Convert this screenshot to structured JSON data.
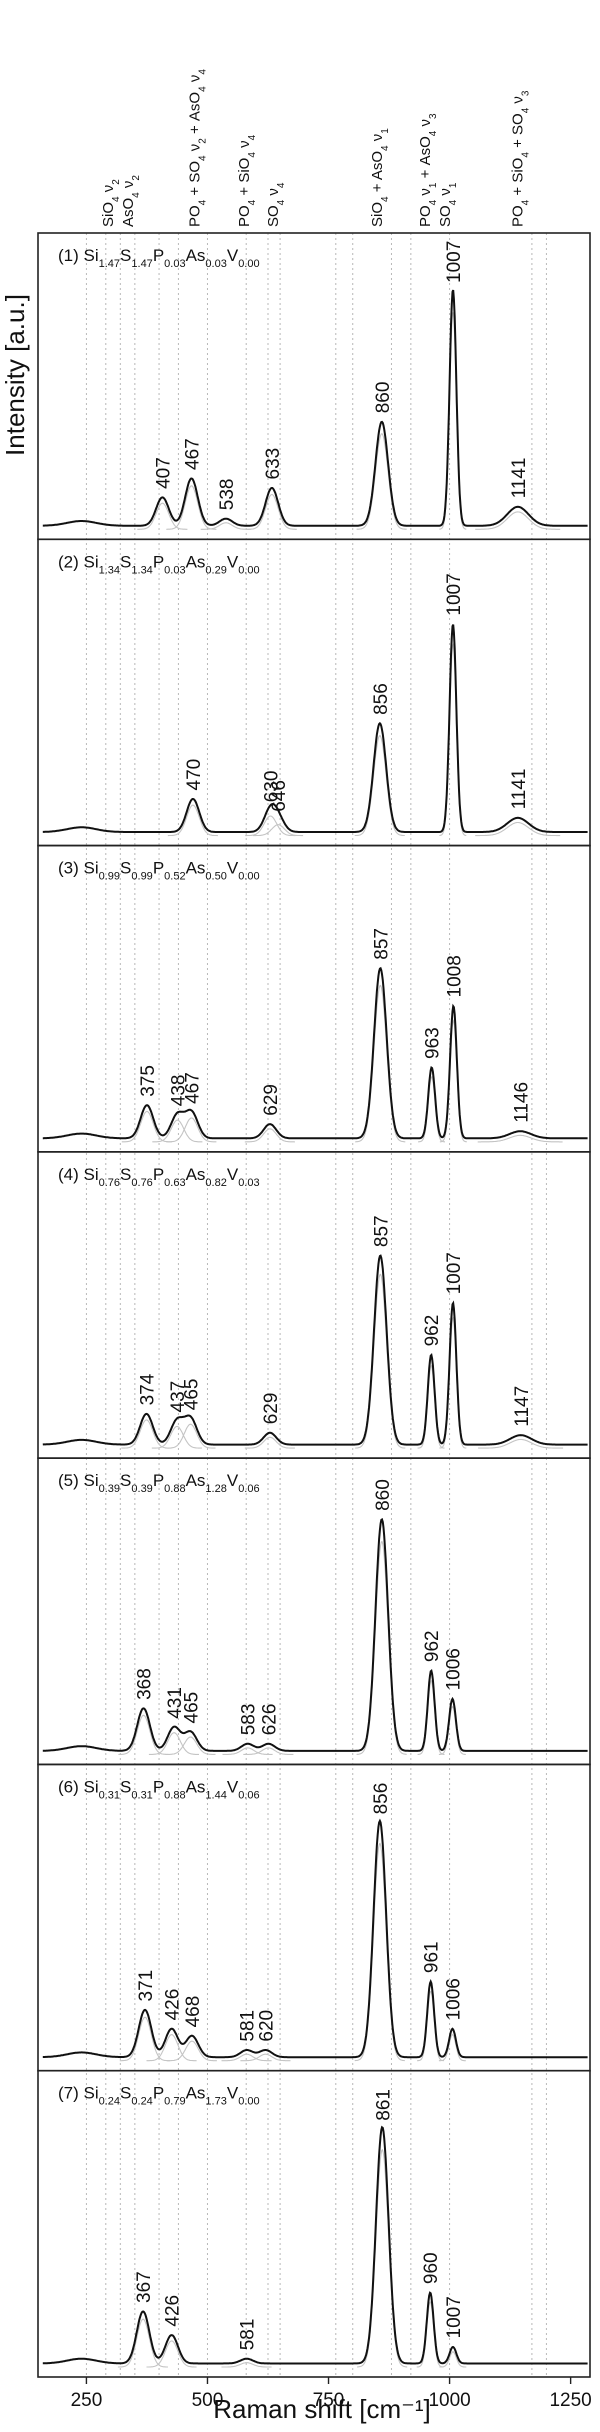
{
  "chart_data": {
    "type": "line",
    "xlabel": "Raman shift [cm⁻¹]",
    "ylabel": "Intensity [a.u.]",
    "xlim": [
      150,
      1290
    ],
    "x_ticks": [
      250,
      500,
      750,
      1000,
      1250
    ],
    "x_tick_labels": [
      "250",
      "500",
      "750",
      "1000",
      "1250"
    ],
    "band_labels": [
      {
        "lines": [
          [
            [
              "SiO",
              ""
            ],
            [
              "4",
              "sub"
            ],
            [
              " ν",
              ""
            ],
            [
              "2",
              "sub"
            ]
          ],
          [
            [
              "AsO",
              ""
            ],
            [
              "4",
              "sub"
            ],
            [
              " ν",
              ""
            ],
            [
              "2",
              "sub"
            ]
          ]
        ],
        "x": 315
      },
      {
        "lines": [
          [
            [
              "PO",
              ""
            ],
            [
              "4",
              "sub"
            ],
            [
              " + SO",
              ""
            ],
            [
              "4",
              "sub"
            ],
            [
              " ν",
              ""
            ],
            [
              "2",
              "sub"
            ],
            [
              " + AsO",
              ""
            ],
            [
              "4",
              "sub"
            ],
            [
              " ν",
              ""
            ],
            [
              "4",
              "sub"
            ]
          ]
        ],
        "x": 473
      },
      {
        "lines": [
          [
            [
              "PO",
              ""
            ],
            [
              "4",
              "sub"
            ],
            [
              " + SiO",
              ""
            ],
            [
              "4",
              "sub"
            ],
            [
              " ν",
              ""
            ],
            [
              "4",
              "sub"
            ]
          ]
        ],
        "x": 575
      },
      {
        "lines": [
          [
            [
              "SO",
              ""
            ],
            [
              "4",
              "sub"
            ],
            [
              " ν",
              ""
            ],
            [
              "4",
              "sub"
            ]
          ]
        ],
        "x": 635
      },
      {
        "lines": [
          [
            [
              "SiO",
              ""
            ],
            [
              "4",
              "sub"
            ],
            [
              " + AsO",
              ""
            ],
            [
              "4",
              "sub"
            ],
            [
              " ν",
              ""
            ],
            [
              "1",
              "sub"
            ]
          ]
        ],
        "x": 850
      },
      {
        "lines": [
          [
            [
              "PO",
              ""
            ],
            [
              "4",
              "sub"
            ],
            [
              " ν",
              ""
            ],
            [
              "1",
              "sub"
            ],
            [
              " + AsO",
              ""
            ],
            [
              "4",
              "sub"
            ],
            [
              " ν",
              ""
            ],
            [
              "3",
              "sub"
            ]
          ],
          [
            [
              "SO",
              ""
            ],
            [
              "4",
              "sub"
            ],
            [
              " ν",
              ""
            ],
            [
              "1",
              "sub"
            ]
          ]
        ],
        "x": 970
      },
      {
        "lines": [
          [
            [
              "PO",
              ""
            ],
            [
              "4",
              "sub"
            ],
            [
              " + SiO",
              ""
            ],
            [
              "4",
              "sub"
            ],
            [
              " + SO",
              ""
            ],
            [
              "4",
              "sub"
            ],
            [
              " ν",
              ""
            ],
            [
              "3",
              "sub"
            ]
          ]
        ],
        "x": 1140
      }
    ],
    "reference_lines": [
      250,
      290,
      320,
      350,
      400,
      440,
      500,
      580,
      625,
      650,
      765,
      800,
      880,
      920,
      1000,
      1170,
      1200
    ],
    "panels": [
      {
        "label": [
          [
            "(1) Si",
            ""
          ],
          [
            "1.47",
            "sub"
          ],
          [
            "S",
            ""
          ],
          [
            "1.47",
            "sub"
          ],
          [
            "P",
            ""
          ],
          [
            "0.03",
            "sub"
          ],
          [
            "As",
            ""
          ],
          [
            "0.03",
            "sub"
          ],
          [
            "V",
            ""
          ],
          [
            "0.00",
            "sub"
          ]
        ],
        "peaks": [
          {
            "x": 407,
            "h": 0.12
          },
          {
            "x": 467,
            "h": 0.2
          },
          {
            "x": 538,
            "h": 0.03
          },
          {
            "x": 633,
            "h": 0.16
          },
          {
            "x": 860,
            "h": 0.44
          },
          {
            "x": 1007,
            "h": 1.0
          },
          {
            "x": 1141,
            "h": 0.08
          }
        ],
        "peak_labels": [
          {
            "x": 407,
            "text": "407"
          },
          {
            "x": 467,
            "text": "467"
          },
          {
            "x": 538,
            "text": "538"
          },
          {
            "x": 633,
            "text": "633"
          },
          {
            "x": 860,
            "text": "860"
          },
          {
            "x": 1007,
            "text": "1007"
          },
          {
            "x": 1141,
            "text": "1141"
          }
        ]
      },
      {
        "label": [
          [
            "(2) Si",
            ""
          ],
          [
            "1.34",
            "sub"
          ],
          [
            "S",
            ""
          ],
          [
            "1.34",
            "sub"
          ],
          [
            "P",
            ""
          ],
          [
            "0.03",
            "sub"
          ],
          [
            "As",
            ""
          ],
          [
            "0.29",
            "sub"
          ],
          [
            "V",
            ""
          ],
          [
            "0.00",
            "sub"
          ]
        ],
        "peaks": [
          {
            "x": 470,
            "h": 0.14
          },
          {
            "x": 630,
            "h": 0.09
          },
          {
            "x": 646,
            "h": 0.05
          },
          {
            "x": 856,
            "h": 0.46
          },
          {
            "x": 1007,
            "h": 0.88
          },
          {
            "x": 1141,
            "h": 0.06
          }
        ],
        "peak_labels": [
          {
            "x": 470,
            "text": "470"
          },
          {
            "x": 630,
            "text": "630"
          },
          {
            "x": 646,
            "text": "646"
          },
          {
            "x": 856,
            "text": "856"
          },
          {
            "x": 1007,
            "text": "1007"
          },
          {
            "x": 1141,
            "text": "1141"
          }
        ]
      },
      {
        "label": [
          [
            "(3) Si",
            ""
          ],
          [
            "0.99",
            "sub"
          ],
          [
            "S",
            ""
          ],
          [
            "0.99",
            "sub"
          ],
          [
            "P",
            ""
          ],
          [
            "0.52",
            "sub"
          ],
          [
            "As",
            ""
          ],
          [
            "0.50",
            "sub"
          ],
          [
            "V",
            ""
          ],
          [
            "0.00",
            "sub"
          ]
        ],
        "peaks": [
          {
            "x": 375,
            "h": 0.14
          },
          {
            "x": 438,
            "h": 0.1
          },
          {
            "x": 467,
            "h": 0.11
          },
          {
            "x": 629,
            "h": 0.06
          },
          {
            "x": 857,
            "h": 0.72
          },
          {
            "x": 963,
            "h": 0.3
          },
          {
            "x": 1008,
            "h": 0.56
          },
          {
            "x": 1146,
            "h": 0.03
          }
        ],
        "peak_labels": [
          {
            "x": 375,
            "text": "375"
          },
          {
            "x": 438,
            "text": "438"
          },
          {
            "x": 467,
            "text": "467"
          },
          {
            "x": 629,
            "text": "629"
          },
          {
            "x": 857,
            "text": "857"
          },
          {
            "x": 963,
            "text": "963"
          },
          {
            "x": 1008,
            "text": "1008"
          },
          {
            "x": 1146,
            "text": "1146"
          }
        ]
      },
      {
        "label": [
          [
            "(4) Si",
            ""
          ],
          [
            "0.76",
            "sub"
          ],
          [
            "S",
            ""
          ],
          [
            "0.76",
            "sub"
          ],
          [
            "P",
            ""
          ],
          [
            "0.63",
            "sub"
          ],
          [
            "As",
            ""
          ],
          [
            "0.82",
            "sub"
          ],
          [
            "V",
            ""
          ],
          [
            "0.03",
            "sub"
          ]
        ],
        "peaks": [
          {
            "x": 374,
            "h": 0.13
          },
          {
            "x": 437,
            "h": 0.1
          },
          {
            "x": 465,
            "h": 0.11
          },
          {
            "x": 629,
            "h": 0.05
          },
          {
            "x": 857,
            "h": 0.8
          },
          {
            "x": 962,
            "h": 0.38
          },
          {
            "x": 1007,
            "h": 0.6
          },
          {
            "x": 1147,
            "h": 0.04
          }
        ],
        "peak_labels": [
          {
            "x": 374,
            "text": "374"
          },
          {
            "x": 437,
            "text": "437"
          },
          {
            "x": 465,
            "text": "465"
          },
          {
            "x": 629,
            "text": "629"
          },
          {
            "x": 857,
            "text": "857"
          },
          {
            "x": 962,
            "text": "962"
          },
          {
            "x": 1007,
            "text": "1007"
          },
          {
            "x": 1147,
            "text": "1147"
          }
        ]
      },
      {
        "label": [
          [
            "(5) Si",
            ""
          ],
          [
            "0.39",
            "sub"
          ],
          [
            "S",
            ""
          ],
          [
            "0.39",
            "sub"
          ],
          [
            "P",
            ""
          ],
          [
            "0.88",
            "sub"
          ],
          [
            "As",
            ""
          ],
          [
            "1.28",
            "sub"
          ],
          [
            "V",
            ""
          ],
          [
            "0.06",
            "sub"
          ]
        ],
        "peaks": [
          {
            "x": 368,
            "h": 0.18
          },
          {
            "x": 431,
            "h": 0.1
          },
          {
            "x": 465,
            "h": 0.08
          },
          {
            "x": 583,
            "h": 0.03
          },
          {
            "x": 626,
            "h": 0.03
          },
          {
            "x": 860,
            "h": 0.98
          },
          {
            "x": 962,
            "h": 0.34
          },
          {
            "x": 1006,
            "h": 0.22
          }
        ],
        "peak_labels": [
          {
            "x": 368,
            "text": "368"
          },
          {
            "x": 431,
            "text": "431"
          },
          {
            "x": 465,
            "text": "465"
          },
          {
            "x": 583,
            "text": "583"
          },
          {
            "x": 626,
            "text": "626"
          },
          {
            "x": 860,
            "text": "860"
          },
          {
            "x": 962,
            "text": "962"
          },
          {
            "x": 1006,
            "text": "1006"
          }
        ]
      },
      {
        "label": [
          [
            "(6) Si",
            ""
          ],
          [
            "0.31",
            "sub"
          ],
          [
            "S",
            ""
          ],
          [
            "0.31",
            "sub"
          ],
          [
            "P",
            ""
          ],
          [
            "0.88",
            "sub"
          ],
          [
            "As",
            ""
          ],
          [
            "1.44",
            "sub"
          ],
          [
            "V",
            ""
          ],
          [
            "0.06",
            "sub"
          ]
        ],
        "peaks": [
          {
            "x": 371,
            "h": 0.2
          },
          {
            "x": 426,
            "h": 0.12
          },
          {
            "x": 468,
            "h": 0.09
          },
          {
            "x": 581,
            "h": 0.03
          },
          {
            "x": 620,
            "h": 0.03
          },
          {
            "x": 856,
            "h": 1.0
          },
          {
            "x": 961,
            "h": 0.32
          },
          {
            "x": 1006,
            "h": 0.12
          }
        ],
        "peak_labels": [
          {
            "x": 371,
            "text": "371"
          },
          {
            "x": 426,
            "text": "426"
          },
          {
            "x": 468,
            "text": "468"
          },
          {
            "x": 581,
            "text": "581"
          },
          {
            "x": 620,
            "text": "620"
          },
          {
            "x": 856,
            "text": "856"
          },
          {
            "x": 961,
            "text": "961"
          },
          {
            "x": 1006,
            "text": "1006"
          }
        ]
      },
      {
        "label": [
          [
            "(7) Si",
            ""
          ],
          [
            "0.24",
            "sub"
          ],
          [
            "S",
            ""
          ],
          [
            "0.24",
            "sub"
          ],
          [
            "P",
            ""
          ],
          [
            "0.79",
            "sub"
          ],
          [
            "As",
            ""
          ],
          [
            "1.73",
            "sub"
          ],
          [
            "V",
            ""
          ],
          [
            "0.00",
            "sub"
          ]
        ],
        "peaks": [
          {
            "x": 367,
            "h": 0.22
          },
          {
            "x": 426,
            "h": 0.12
          },
          {
            "x": 581,
            "h": 0.02
          },
          {
            "x": 861,
            "h": 1.0
          },
          {
            "x": 960,
            "h": 0.3
          },
          {
            "x": 1007,
            "h": 0.07
          }
        ],
        "peak_labels": [
          {
            "x": 367,
            "text": "367"
          },
          {
            "x": 426,
            "text": "426"
          },
          {
            "x": 581,
            "text": "581"
          },
          {
            "x": 861,
            "text": "861"
          },
          {
            "x": 960,
            "text": "960"
          },
          {
            "x": 1007,
            "text": "1007"
          }
        ]
      }
    ]
  }
}
